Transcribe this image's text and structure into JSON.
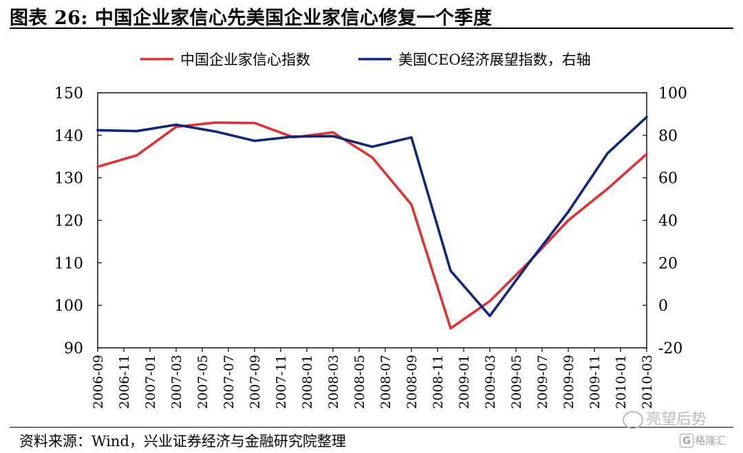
{
  "header": {
    "title": "图表 26:  中国企业家信心先美国企业家信心修复一个季度"
  },
  "footer": {
    "source": "资料来源：Wind，兴业证券经济与金融研究院整理",
    "watermark": "亮望后势",
    "logo_mark": "G",
    "logo_text": "格隆汇"
  },
  "chart_data": {
    "type": "line",
    "legend_position": "top-center",
    "grid": false,
    "x_tick_labels": [
      "2006-09",
      "2006-11",
      "2007-01",
      "2007-03",
      "2007-05",
      "2007-07",
      "2007-09",
      "2007-11",
      "2008-01",
      "2008-03",
      "2008-05",
      "2008-07",
      "2008-09",
      "2008-11",
      "2009-01",
      "2009-03",
      "2009-05",
      "2009-07",
      "2009-09",
      "2009-11",
      "2010-01",
      "2010-03"
    ],
    "y_left": {
      "range": [
        90,
        150
      ],
      "ticks": [
        "90",
        "100",
        "110",
        "120",
        "130",
        "140",
        "150"
      ]
    },
    "y_right": {
      "range": [
        -20,
        100
      ],
      "ticks": [
        "-20",
        "0",
        "20",
        "40",
        "60",
        "80",
        "100"
      ]
    },
    "series": [
      {
        "name": "中国企业家信心指数",
        "axis": "left",
        "color": "#e03030",
        "points": [
          {
            "x": "2006-09",
            "y": 132.6
          },
          {
            "x": "2006-12",
            "y": 135.3
          },
          {
            "x": "2007-03",
            "y": 142.0
          },
          {
            "x": "2007-06",
            "y": 143.0
          },
          {
            "x": "2007-09",
            "y": 142.9
          },
          {
            "x": "2007-12",
            "y": 139.5
          },
          {
            "x": "2008-03",
            "y": 140.7
          },
          {
            "x": "2008-06",
            "y": 134.8
          },
          {
            "x": "2008-09",
            "y": 123.7
          },
          {
            "x": "2008-12",
            "y": 94.6
          },
          {
            "x": "2009-03",
            "y": 101.0
          },
          {
            "x": "2009-06",
            "y": 110.2
          },
          {
            "x": "2009-09",
            "y": 120.0
          },
          {
            "x": "2009-12",
            "y": 127.4
          },
          {
            "x": "2010-03",
            "y": 135.6
          }
        ]
      },
      {
        "name": "美国CEO经济展望指数，右轴",
        "axis": "right",
        "color": "#10267d",
        "points": [
          {
            "x": "2006-09",
            "y": 82.4
          },
          {
            "x": "2006-12",
            "y": 82.0
          },
          {
            "x": "2007-03",
            "y": 85.0
          },
          {
            "x": "2007-06",
            "y": 81.8
          },
          {
            "x": "2007-09",
            "y": 77.4
          },
          {
            "x": "2007-12",
            "y": 79.4
          },
          {
            "x": "2008-03",
            "y": 79.6
          },
          {
            "x": "2008-06",
            "y": 74.6
          },
          {
            "x": "2008-09",
            "y": 79.0
          },
          {
            "x": "2008-12",
            "y": 16.3
          },
          {
            "x": "2009-03",
            "y": -5.0
          },
          {
            "x": "2009-06",
            "y": 20.0
          },
          {
            "x": "2009-09",
            "y": 44.0
          },
          {
            "x": "2009-12",
            "y": 71.5
          },
          {
            "x": "2010-03",
            "y": 88.6
          }
        ]
      }
    ]
  }
}
